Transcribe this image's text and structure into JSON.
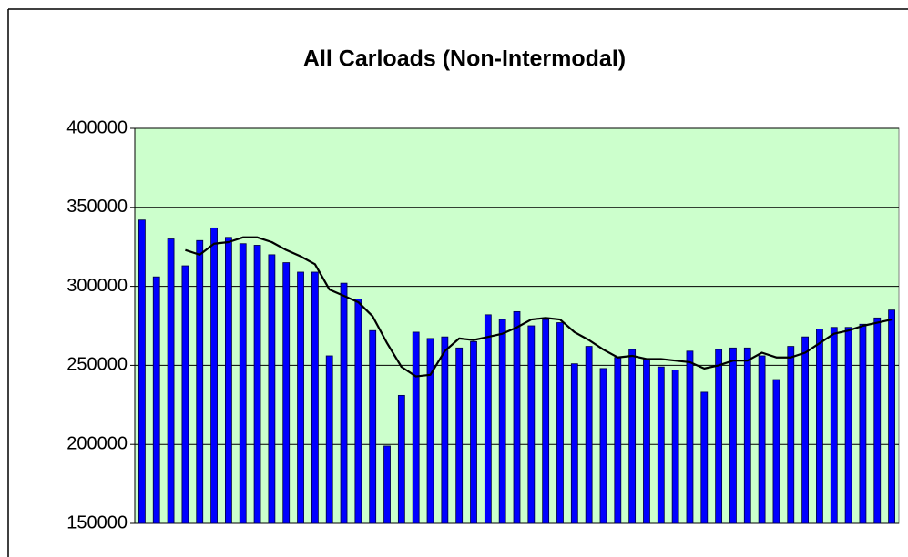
{
  "chart_data": {
    "type": "bar",
    "title": "All Carloads (Non-Intermodal)",
    "categories": [
      null,
      null,
      null,
      null,
      null,
      null,
      null,
      null,
      null,
      null,
      null,
      null,
      null,
      null,
      null,
      null,
      null,
      null,
      null,
      null,
      null,
      null,
      null,
      null,
      null,
      null,
      null,
      null,
      null,
      null,
      null,
      null,
      null,
      null,
      null,
      null,
      null,
      null,
      null,
      null,
      null,
      null,
      null,
      null,
      null,
      null,
      null,
      null,
      null,
      null,
      null,
      null,
      null
    ],
    "values": [
      342000,
      306000,
      330000,
      313000,
      329000,
      337000,
      331000,
      327000,
      326000,
      320000,
      315000,
      309000,
      309000,
      256000,
      302000,
      292000,
      272000,
      199000,
      231000,
      271000,
      267000,
      268000,
      261000,
      265000,
      282000,
      279000,
      284000,
      275000,
      279000,
      277000,
      251000,
      262000,
      248000,
      255000,
      260000,
      254000,
      249000,
      247000,
      259000,
      233000,
      260000,
      261000,
      261000,
      256000,
      241000,
      262000,
      268000,
      273000,
      274000,
      274000,
      276000,
      280000,
      285000
    ],
    "color": "#0000ff",
    "moving_average": {
      "type": "line",
      "color": "#000000",
      "values": [
        null,
        null,
        null,
        323000,
        320000,
        327000,
        328000,
        331000,
        331000,
        328000,
        323000,
        319000,
        314000,
        298000,
        294000,
        290000,
        281000,
        264000,
        249000,
        243000,
        244000,
        259000,
        267000,
        266000,
        268000,
        270000,
        274000,
        279000,
        280000,
        279000,
        271000,
        266000,
        260000,
        255000,
        256000,
        254000,
        254000,
        253000,
        252000,
        248000,
        250000,
        253000,
        253000,
        258000,
        255000,
        255000,
        258000,
        264000,
        270000,
        272000,
        275000,
        277000,
        279000
      ]
    },
    "ylim": [
      150000,
      400000
    ],
    "yticks": [
      150000,
      200000,
      250000,
      300000,
      350000,
      400000
    ],
    "grid": true,
    "plot_background": "#ccffcc"
  }
}
